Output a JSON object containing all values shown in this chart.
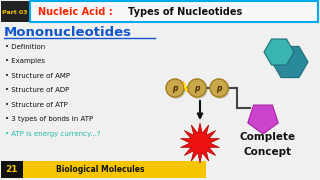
{
  "bg_color": "#f0f0f0",
  "part_box_color": "#222222",
  "part_text": "Part 03",
  "title_red": "Nucleic Acid : ",
  "title_black": "Types of Nucleotides",
  "title_border_color": "#00aaee",
  "main_heading": "Mononucleotides",
  "main_heading_color": "#1155cc",
  "underline_color": "#1155cc",
  "bullet_items": [
    "Definition",
    "Examples",
    "Structure of AMP",
    "Structure of ADP",
    "Structure of ATP",
    "3 types of bonds in ATP",
    "ATP is energy currency...?"
  ],
  "last_bullet_color": "#22bbaa",
  "bullet_color": "#111111",
  "bottom_bar_color": "#f5c500",
  "bottom_num_bg": "#111111",
  "bottom_number": "21",
  "bottom_label": "Biological Molecules",
  "circle_color": "#c8a84b",
  "circle_shade": "#a07820",
  "circle_letter_color": "#4a3000",
  "teal_color1": "#3ab5b0",
  "teal_color2": "#2a8a9a",
  "teal_color3": "#1d6e7a",
  "magenta_color": "#cc44cc",
  "magenta_edge": "#aa22aa",
  "explosion_red": "#ee1111",
  "explosion_edge": "#aa0000",
  "arrow_color": "#111111",
  "connect_line_color": "#444444",
  "complete_concept_color": "#111111",
  "bolt_orange": "#ff8800",
  "bolt_yellow": "#ffee00"
}
